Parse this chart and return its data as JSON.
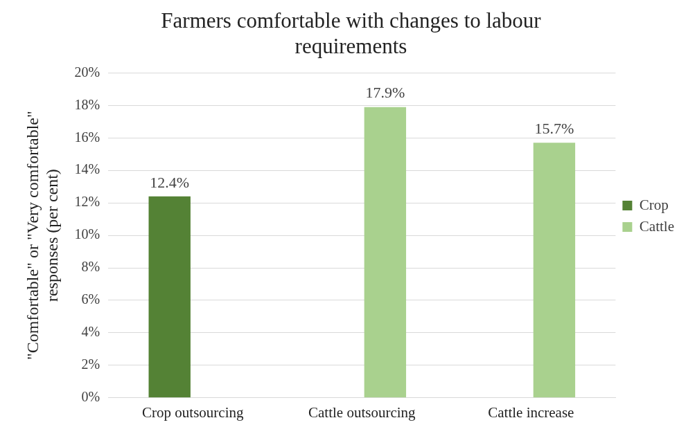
{
  "chart_data": {
    "type": "bar",
    "title": "Farmers comfortable with changes to labour requirements",
    "ylabel": "\"Comfortable\" or \"Very comfortable\" responses (per cent)",
    "categories": [
      "Crop outsourcing",
      "Cattle outsourcing",
      "Cattle increase"
    ],
    "series": [
      {
        "name": "Crop",
        "color": "#548235",
        "values": [
          12.4,
          null,
          null
        ],
        "value_labels": [
          "12.4%",
          null,
          null
        ]
      },
      {
        "name": "Cattle",
        "color": "#a9d18e",
        "values": [
          null,
          17.9,
          15.7
        ],
        "value_labels": [
          null,
          "17.9%",
          "15.7%"
        ]
      }
    ],
    "ylim": [
      0,
      20
    ],
    "yticks": [
      {
        "value": 0,
        "label": "0%"
      },
      {
        "value": 2,
        "label": "2%"
      },
      {
        "value": 4,
        "label": "4%"
      },
      {
        "value": 6,
        "label": "6%"
      },
      {
        "value": 8,
        "label": "8%"
      },
      {
        "value": 10,
        "label": "10%"
      },
      {
        "value": 12,
        "label": "12%"
      },
      {
        "value": 14,
        "label": "14%"
      },
      {
        "value": 16,
        "label": "16%"
      },
      {
        "value": 18,
        "label": "18%"
      },
      {
        "value": 20,
        "label": "20%"
      }
    ],
    "grid": "y",
    "legend": "right"
  }
}
